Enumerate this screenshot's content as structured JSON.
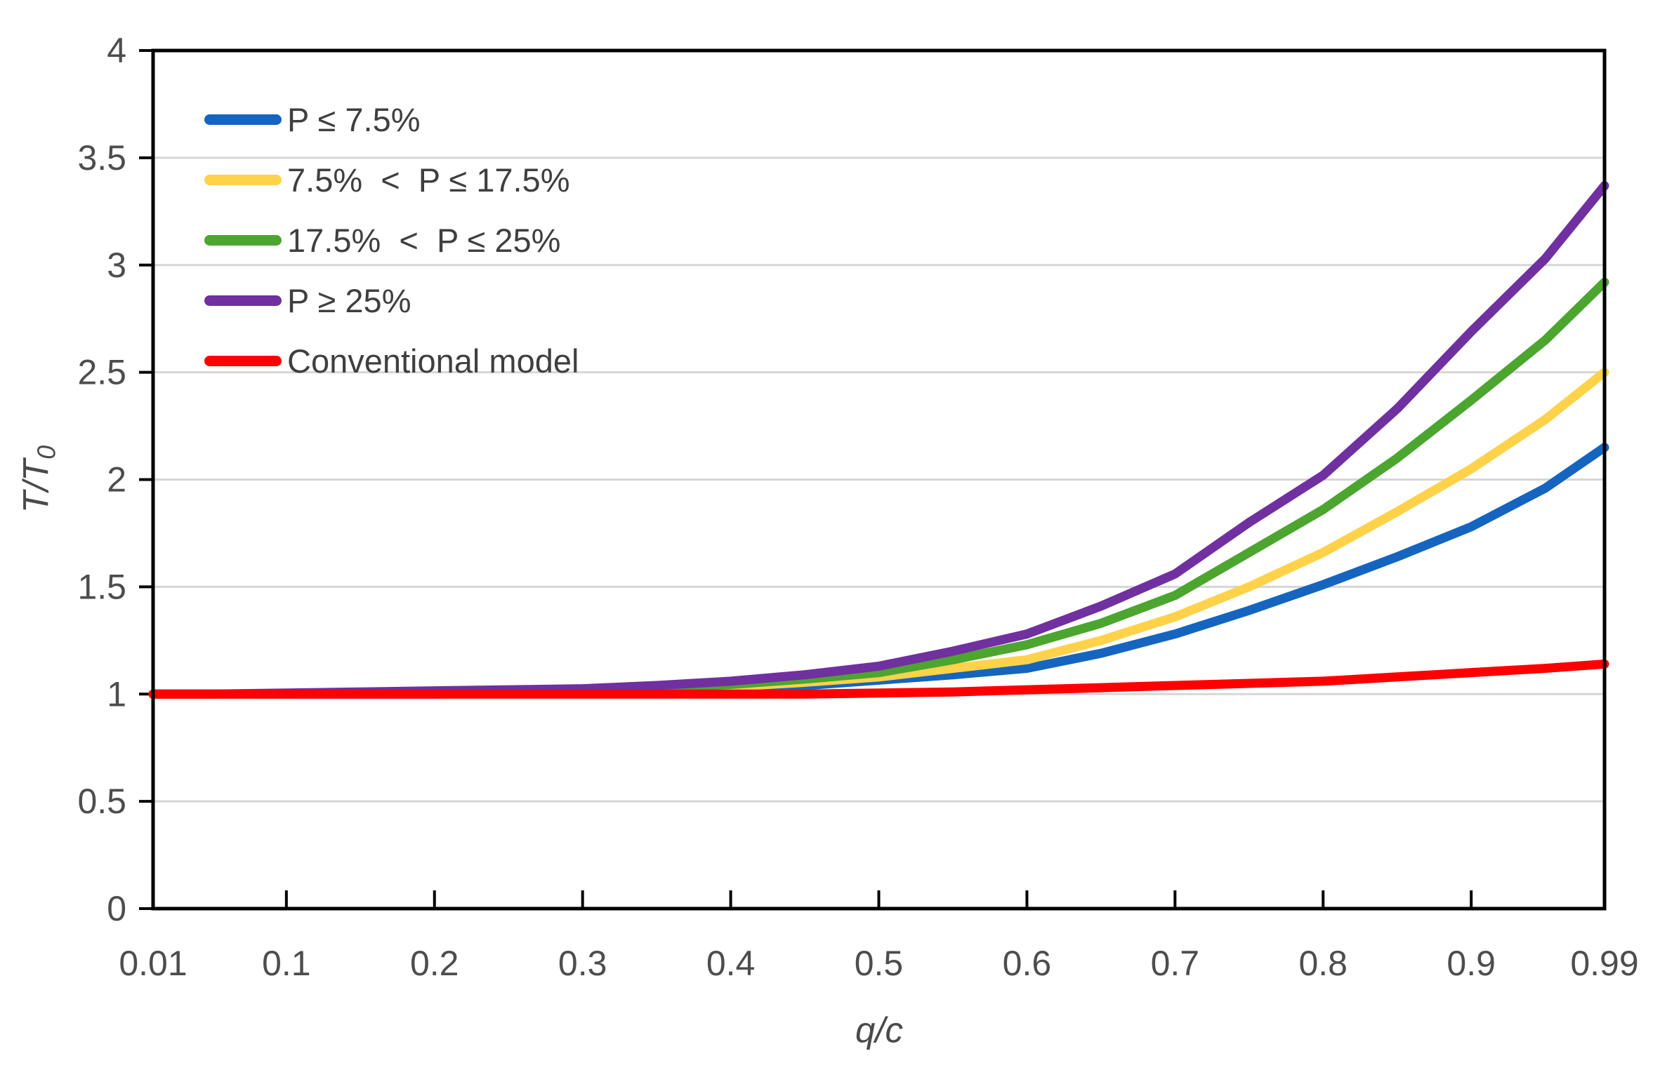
{
  "figure": {
    "background_color": "#ffffff",
    "axis_color": "#000000",
    "gridline_color": "#d6d6d6",
    "tick_label_color": "#4d4d4d",
    "legend_text_color": "#3f3f3f"
  },
  "y_axis": {
    "title_main": "T/T",
    "title_sub": "0"
  },
  "x_axis": {
    "title": "q/c"
  },
  "chart_data": {
    "type": "line",
    "title": "",
    "xlabel": "q/c",
    "ylabel": "T/T0",
    "xlim": [
      0.01,
      0.99
    ],
    "ylim": [
      0,
      4
    ],
    "grid": "horizontal-only",
    "legend_position": "inside-top-left",
    "x_tick_values": [
      0.01,
      0.1,
      0.2,
      0.3,
      0.4,
      0.5,
      0.6,
      0.7,
      0.8,
      0.9,
      0.99
    ],
    "x_tick_labels": [
      "0.01",
      "0.1",
      "0.2",
      "0.3",
      "0.4",
      "0.5",
      "0.6",
      "0.7",
      "0.8",
      "0.9",
      "0.99"
    ],
    "y_tick_values": [
      0,
      0.5,
      1,
      1.5,
      2,
      2.5,
      3,
      3.5,
      4
    ],
    "y_tick_labels": [
      "0",
      "0.5",
      "1",
      "1.5",
      "2",
      "2.5",
      "3",
      "3.5",
      "4"
    ],
    "x": [
      0.01,
      0.05,
      0.1,
      0.15,
      0.2,
      0.25,
      0.3,
      0.35,
      0.4,
      0.45,
      0.5,
      0.55,
      0.6,
      0.65,
      0.7,
      0.75,
      0.8,
      0.85,
      0.9,
      0.95,
      0.99
    ],
    "series": [
      {
        "name": "P ≤ 7.5%",
        "color": "#1565c0",
        "values": [
          1.0,
          1.0,
          1.0,
          1.0,
          1.0,
          1.005,
          1.01,
          1.02,
          1.025,
          1.04,
          1.065,
          1.09,
          1.12,
          1.19,
          1.28,
          1.39,
          1.51,
          1.64,
          1.78,
          1.96,
          2.15
        ]
      },
      {
        "name": "7.5%  <  P ≤ 17.5%",
        "color": "#ffd24a",
        "values": [
          1.0,
          1.0,
          1.0,
          1.005,
          1.01,
          1.01,
          1.015,
          1.02,
          1.035,
          1.055,
          1.08,
          1.12,
          1.16,
          1.25,
          1.36,
          1.5,
          1.66,
          1.85,
          2.05,
          2.28,
          2.5
        ]
      },
      {
        "name": "17.5%  <  P ≤ 25%",
        "color": "#4ca52f",
        "values": [
          1.0,
          1.0,
          1.0,
          1.005,
          1.01,
          1.015,
          1.02,
          1.03,
          1.045,
          1.07,
          1.1,
          1.16,
          1.23,
          1.33,
          1.46,
          1.66,
          1.86,
          2.1,
          2.37,
          2.65,
          2.92
        ]
      },
      {
        "name": "P ≥ 25%",
        "color": "#7030a0",
        "values": [
          1.0,
          1.0,
          1.005,
          1.01,
          1.015,
          1.02,
          1.025,
          1.04,
          1.06,
          1.09,
          1.13,
          1.2,
          1.28,
          1.41,
          1.56,
          1.8,
          2.02,
          2.33,
          2.69,
          3.03,
          3.37
        ]
      },
      {
        "name": "Conventional model",
        "color": "#ff0000",
        "values": [
          1.0,
          1.0,
          1.0,
          1.0,
          1.0,
          1.0,
          1.0,
          1.0,
          1.0,
          1.0,
          1.005,
          1.01,
          1.02,
          1.03,
          1.04,
          1.05,
          1.06,
          1.08,
          1.1,
          1.12,
          1.14
        ]
      }
    ]
  }
}
